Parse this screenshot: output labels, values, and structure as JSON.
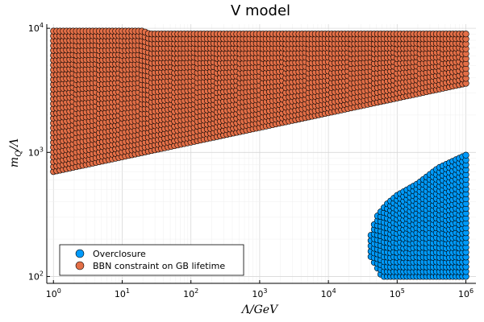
{
  "chart_data": {
    "type": "scatter",
    "title": "V model",
    "xlabel": "Λ/GeV",
    "ylabel": "m_Q/Λ",
    "xscale": "log",
    "yscale": "log",
    "xlim": [
      0.8,
      1400000.0
    ],
    "ylim": [
      88,
      10800
    ],
    "grid": true,
    "legend_position": "bottom-left",
    "x_ticks": [
      {
        "value": 1,
        "base": "10",
        "exp": "0"
      },
      {
        "value": 10,
        "base": "10",
        "exp": "1"
      },
      {
        "value": 100,
        "base": "10",
        "exp": "2"
      },
      {
        "value": 1000,
        "base": "10",
        "exp": "3"
      },
      {
        "value": 10000,
        "base": "10",
        "exp": "4"
      },
      {
        "value": 100000,
        "base": "10",
        "exp": "5"
      },
      {
        "value": 1000000,
        "base": "10",
        "exp": "6"
      }
    ],
    "y_ticks": [
      {
        "value": 100,
        "base": "10",
        "exp": "2"
      },
      {
        "value": 1000,
        "base": "10",
        "exp": "3"
      },
      {
        "value": 10000,
        "base": "10",
        "exp": "4"
      }
    ],
    "series": [
      {
        "name": "Overclosure",
        "color": "#009AFA",
        "region": {
          "x_range": [
            40000,
            1000000
          ],
          "y_min": 100,
          "upper_boundary": [
            [
              40000,
              200
            ],
            [
              50000,
              300
            ],
            [
              70000,
              380
            ],
            [
              100000,
              450
            ],
            [
              200000,
              560
            ],
            [
              400000,
              750
            ],
            [
              1000000,
              950
            ]
          ],
          "lower_boundary": [
            [
              40000,
              150
            ],
            [
              55000,
              110
            ],
            [
              60000,
              100
            ],
            [
              1000000,
              100
            ]
          ]
        }
      },
      {
        "name": "BBN constraint on GB lifetime",
        "color": "#E36F47",
        "region": {
          "x_range": [
            1,
            1000000
          ],
          "upper_boundary": [
            [
              1,
              9500
            ],
            [
              20,
              9500
            ],
            [
              25,
              9000
            ],
            [
              1000000,
              9000
            ]
          ],
          "lower_boundary": [
            [
              1,
              700
            ],
            [
              1000000,
              3600
            ]
          ]
        }
      }
    ]
  }
}
